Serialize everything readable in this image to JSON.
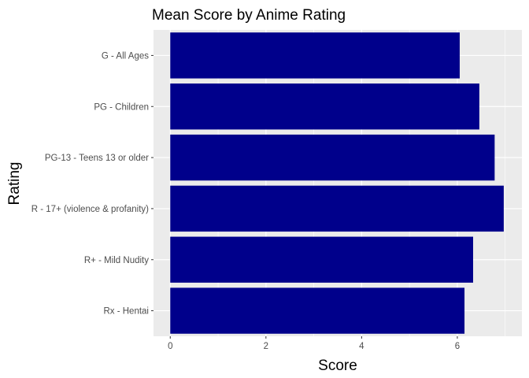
{
  "chart_data": {
    "type": "bar",
    "orientation": "horizontal",
    "title": "Mean Score by Anime Rating",
    "xlabel": "Score",
    "ylabel": "Rating",
    "categories": [
      "G - All Ages",
      "PG - Children",
      "PG-13 - Teens 13 or older",
      "R - 17+ (violence & profanity)",
      "R+ - Mild Nudity",
      "Rx - Hentai"
    ],
    "values": [
      6.05,
      6.46,
      6.78,
      6.97,
      6.33,
      6.15
    ],
    "x_ticks": [
      "0",
      "2",
      "4",
      "6"
    ],
    "xlim": [
      -0.35,
      7.35
    ],
    "grid": true,
    "panel_background": "#ebebeb",
    "bar_color": "#00008b",
    "grid_color": "#ffffff"
  }
}
